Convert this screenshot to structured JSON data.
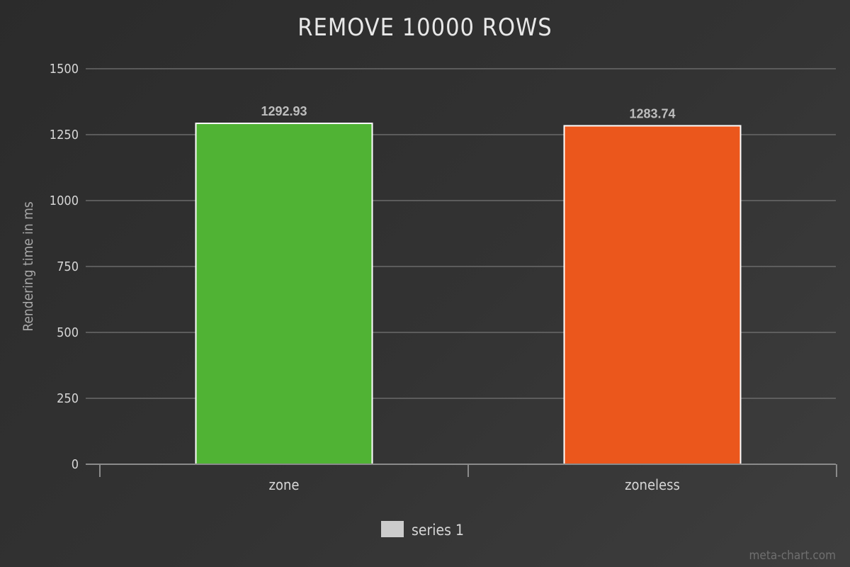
{
  "chart_data": {
    "type": "bar",
    "title": "REMOVE 10000 ROWS",
    "xlabel": "",
    "ylabel": "Rendering time in ms",
    "categories": [
      "zone",
      "zoneless"
    ],
    "series": [
      {
        "name": "series 1",
        "values": [
          1292.93,
          1283.74
        ],
        "value_labels": [
          "1292.93",
          "1283.74"
        ],
        "colors": [
          "#50b334",
          "#eb571c"
        ]
      }
    ],
    "ylim": [
      0,
      1500
    ],
    "yticks": [
      0,
      250,
      500,
      750,
      1000,
      1250,
      1500
    ],
    "ytick_labels": [
      "0",
      "250",
      "500",
      "750",
      "1000",
      "1250",
      "1500"
    ],
    "grid": true,
    "legend": {
      "placement": "bottom-center",
      "entries": [
        "series 1"
      ],
      "swatch_color": "#cccccc"
    }
  },
  "watermark": "meta-chart.com"
}
